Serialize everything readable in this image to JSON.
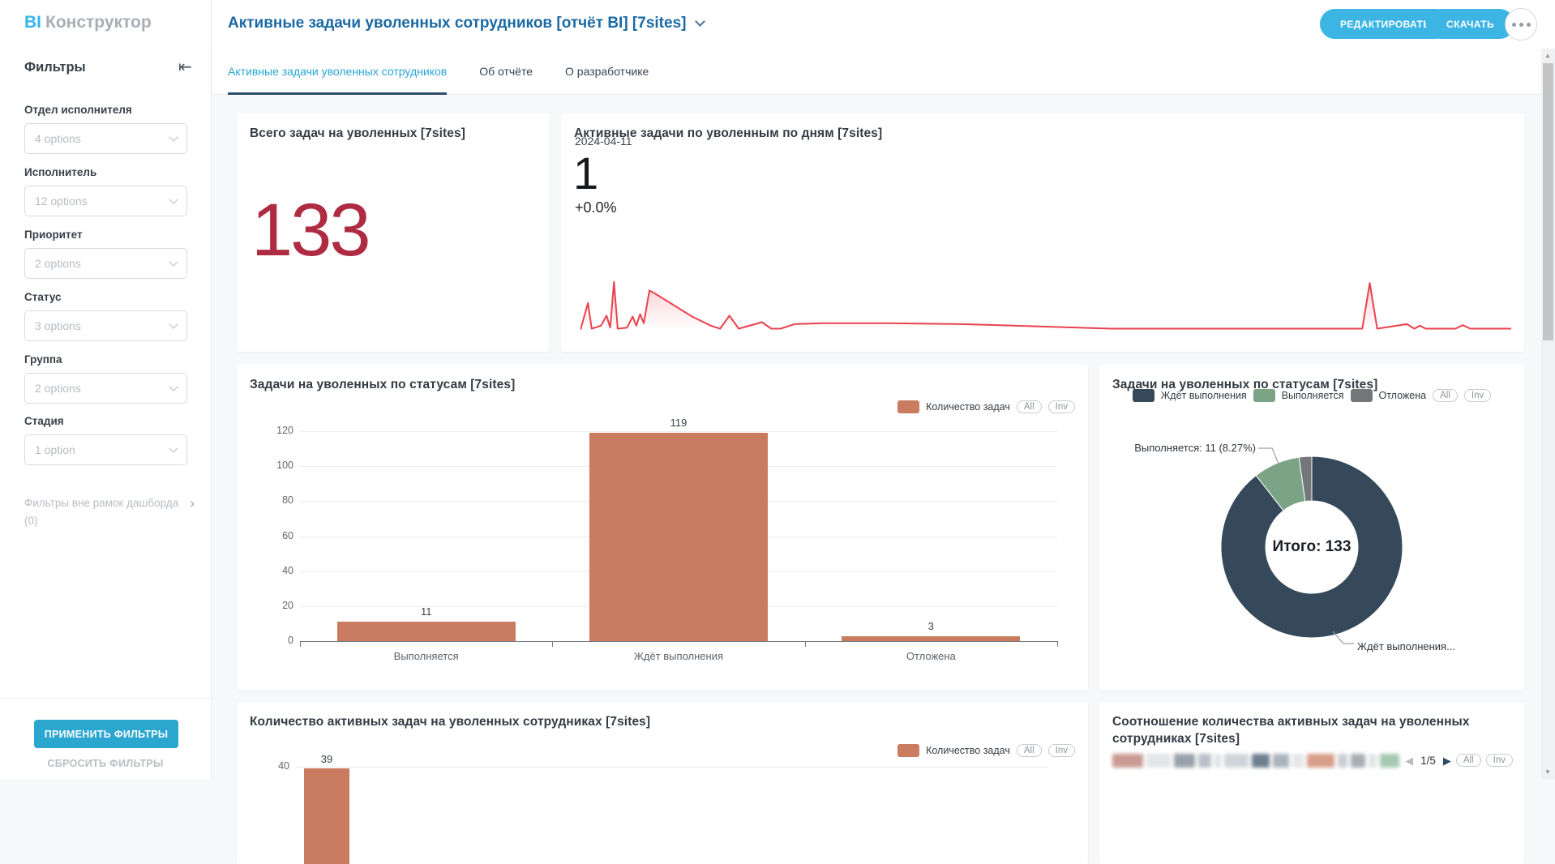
{
  "header": {
    "logo_bi": "BI",
    "logo_product": "Конструктор",
    "title": "Активные задачи уволенных сотрудников [отчёт BI] [7sites]",
    "edit_button": "РЕДАКТИРОВАТЬ",
    "download_button": "СКАЧАТЬ"
  },
  "tabs": [
    {
      "label": "Активные задачи уволенных сотрудников",
      "active": true
    },
    {
      "label": "Об отчёте",
      "active": false
    },
    {
      "label": "О разработчике",
      "active": false
    }
  ],
  "sidebar": {
    "title": "Фильтры",
    "filters": [
      {
        "label": "Отдел исполнителя",
        "value": "4 options"
      },
      {
        "label": "Исполнитель",
        "value": "12 options"
      },
      {
        "label": "Приоритет",
        "value": "2 options"
      },
      {
        "label": "Статус",
        "value": "3 options"
      },
      {
        "label": "Группа",
        "value": "2 options"
      },
      {
        "label": "Стадия",
        "value": "1 option"
      }
    ],
    "outside_filters_label": "Фильтры вне рамок дашборда",
    "outside_filters_count": "(0)",
    "apply_button": "ПРИМЕНИТЬ ФИЛЬТРЫ",
    "reset_button": "СБРОСИТЬ ФИЛЬТРЫ"
  },
  "controls": {
    "all": "All",
    "inv": "Inv"
  },
  "icons": {
    "prev": "◀",
    "next": "▶",
    "scroll_up": "▲",
    "scroll_down": "▼",
    "collapse": "⇤",
    "outside_chevron": "›"
  },
  "colors": {
    "accent_blue": "#3cb5e5",
    "apply_blue": "#2aa6cf",
    "title_blue": "#1a69a4",
    "active_tab_blue": "#2aa5d8",
    "tab_underline": "#2e4d6b",
    "kpi_red": "#ae2b41",
    "spark_red": "#e8424f",
    "bar_salmon": "#c97c60",
    "donut_navy": "#35495a",
    "donut_green": "#7ba487",
    "donut_gray": "#747779"
  },
  "chart_data": [
    {
      "type": "kpi",
      "title": "Всего задач на уволенных [7sites]",
      "value": "133"
    },
    {
      "type": "line",
      "title": "Активные задачи по уволенным по дням [7sites]",
      "current_date": "2024-04-11",
      "current_value": "1",
      "delta": "+0.0%",
      "line_color": "#e8424f",
      "points_normalized": [
        [
          0,
          0.02
        ],
        [
          0.008,
          0.55
        ],
        [
          0.012,
          0.04
        ],
        [
          0.022,
          0.1
        ],
        [
          0.028,
          0.3
        ],
        [
          0.032,
          0.06
        ],
        [
          0.036,
          0.97
        ],
        [
          0.04,
          0.04
        ],
        [
          0.05,
          0.06
        ],
        [
          0.056,
          0.28
        ],
        [
          0.06,
          0.1
        ],
        [
          0.064,
          0.33
        ],
        [
          0.068,
          0.15
        ],
        [
          0.074,
          0.8
        ],
        [
          0.08,
          0.74
        ],
        [
          0.12,
          0.28
        ],
        [
          0.14,
          0.1
        ],
        [
          0.15,
          0.04
        ],
        [
          0.16,
          0.3
        ],
        [
          0.17,
          0.04
        ],
        [
          0.195,
          0.17
        ],
        [
          0.205,
          0.04
        ],
        [
          0.215,
          0.04
        ],
        [
          0.23,
          0.13
        ],
        [
          0.26,
          0.15
        ],
        [
          0.33,
          0.15
        ],
        [
          0.41,
          0.13
        ],
        [
          0.5,
          0.08
        ],
        [
          0.57,
          0.04
        ],
        [
          0.84,
          0.04
        ],
        [
          0.848,
          0.95
        ],
        [
          0.856,
          0.04
        ],
        [
          0.888,
          0.13
        ],
        [
          0.896,
          0.04
        ],
        [
          0.902,
          0.1
        ],
        [
          0.908,
          0.04
        ],
        [
          0.94,
          0.04
        ],
        [
          0.948,
          0.11
        ],
        [
          0.956,
          0.04
        ],
        [
          1,
          0.04
        ]
      ]
    },
    {
      "type": "bar",
      "title": "Задачи на уволенных по статусам [7sites]",
      "legend": "Количество задач",
      "bar_color": "#c97c60",
      "categories": [
        "Выполняется",
        "Ждёт выполнения",
        "Отложена"
      ],
      "values": [
        11,
        119,
        3
      ],
      "ylim": [
        0,
        120
      ],
      "yticks": [
        0,
        20,
        40,
        60,
        80,
        100,
        120
      ]
    },
    {
      "type": "donut",
      "title": "Задачи на уволенных по статусам [7sites]",
      "labels": [
        "Ждёт выполнения",
        "Выполняется",
        "Отложена"
      ],
      "values": [
        119,
        11,
        3
      ],
      "percentages": [
        89.47,
        8.27,
        2.26
      ],
      "colors": [
        "#35495a",
        "#7ba487",
        "#747779"
      ],
      "total_label": "Итого: 133",
      "annotation_running": "Выполняется: 11 (8.27%)",
      "annotation_waiting": "Ждёт выполнения..."
    },
    {
      "type": "bar",
      "title": "Количество активных задач на уволенных сотрудниках [7sites]",
      "legend": "Количество задач",
      "bar_color": "#c97c60",
      "visible_ytick": 40,
      "visible_values": [
        39
      ]
    },
    {
      "type": "legend-paged",
      "title": "Соотношение количества активных задач на уволенных сотрудниках [7sites]",
      "page": "1/5",
      "legend_blurred": true,
      "blurred_swatches": [
        [
          "#c99b94",
          38
        ],
        [
          "#e3e5e7",
          30
        ],
        [
          "#99a1a8",
          26
        ],
        [
          "#b9c0c6",
          16
        ],
        [
          "#dfe1e3",
          8
        ],
        [
          "#cfd4d8",
          30
        ],
        [
          "#6d7f8e",
          22
        ],
        [
          "#aab4bc",
          20
        ],
        [
          "#e4e6e8",
          14
        ],
        [
          "#d79e89",
          34
        ],
        [
          "#c9ced2",
          12
        ],
        [
          "#a7aeb4",
          18
        ],
        [
          "#e2e4e6",
          10
        ],
        [
          "#a5c9b1",
          24
        ]
      ]
    }
  ]
}
